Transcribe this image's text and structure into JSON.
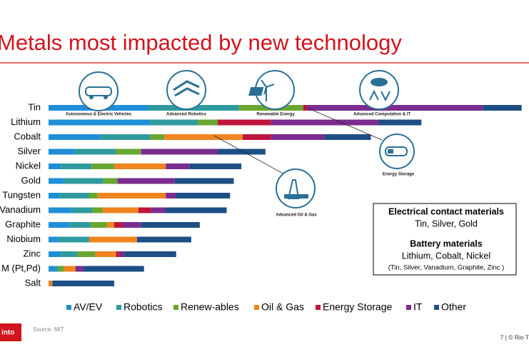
{
  "chart_data": {
    "type": "stacked-barh",
    "title": "Metals most impacted by new technology",
    "categories": [
      "Tin",
      "Lithium",
      "Cobalt",
      "Silver",
      "Nickel",
      "Gold",
      "Tungsten",
      "Vanadium",
      "Graphite",
      "Niobium",
      "Zinc",
      "M (Pt,Pd)",
      "Salt"
    ],
    "series": [
      {
        "name": "AV/EV",
        "color": "#1f8fd6",
        "values": [
          21.0,
          21.5,
          10.9,
          5.6,
          2.6,
          3.3,
          2.3,
          4.8,
          4.5,
          2.1,
          2.6,
          1.5,
          0
        ]
      },
      {
        "name": "Robotics",
        "color": "#2f9a9e",
        "values": [
          19.3,
          10.1,
          10.6,
          8.6,
          6.5,
          8.3,
          6.3,
          4.5,
          4.4,
          6.5,
          3.5,
          0.6,
          0
        ]
      },
      {
        "name": "Renew-ables",
        "color": "#6aa632",
        "values": [
          13.6,
          4.2,
          3.0,
          5.4,
          4.8,
          3.0,
          1.8,
          2.1,
          3.5,
          0,
          3.8,
          1.2,
          0
        ]
      },
      {
        "name": "Oil & Gas",
        "color": "#f0841e",
        "values": [
          0,
          0,
          16.6,
          0,
          10.9,
          0,
          14.4,
          7.6,
          1.5,
          10.1,
          4.4,
          2.4,
          0.8
        ]
      },
      {
        "name": "Energy Storage",
        "color": "#c0143c",
        "values": [
          0.8,
          11.3,
          6.0,
          0,
          0,
          0,
          0,
          2.7,
          1.8,
          0,
          0.6,
          0,
          0
        ]
      },
      {
        "name": "IT",
        "color": "#7b2c8f",
        "values": [
          37.2,
          22.7,
          11.3,
          16.2,
          5.0,
          12.1,
          2.1,
          3.0,
          3.9,
          0,
          1.2,
          1.7,
          0
        ]
      },
      {
        "name": "Other",
        "color": "#1d4f84",
        "values": [
          8.2,
          9.1,
          9.8,
          10.1,
          11.0,
          12.5,
          11.5,
          13.0,
          12.4,
          11.5,
          10.9,
          12.8,
          13.1
        ]
      }
    ],
    "icons": [
      "Autonomous & Electric Vehicles",
      "Advanced Robotics",
      "Renewable Energy",
      "Advanced Computation & IT",
      "Energy Storage",
      "Advanced Oil & Gas"
    ],
    "callout": {
      "heading1": "Electrical contact materials",
      "text1": "Tin, Silver, Gold",
      "heading2": "Battery materials",
      "text2": "Lithium, Cobalt, Nickel",
      "text3": "(Tin, Silver, Vanadium, Graphite, Zinc )"
    }
  },
  "footer": {
    "logo": "into",
    "source": "Source: MIT",
    "page": "7 | © Rio T"
  }
}
